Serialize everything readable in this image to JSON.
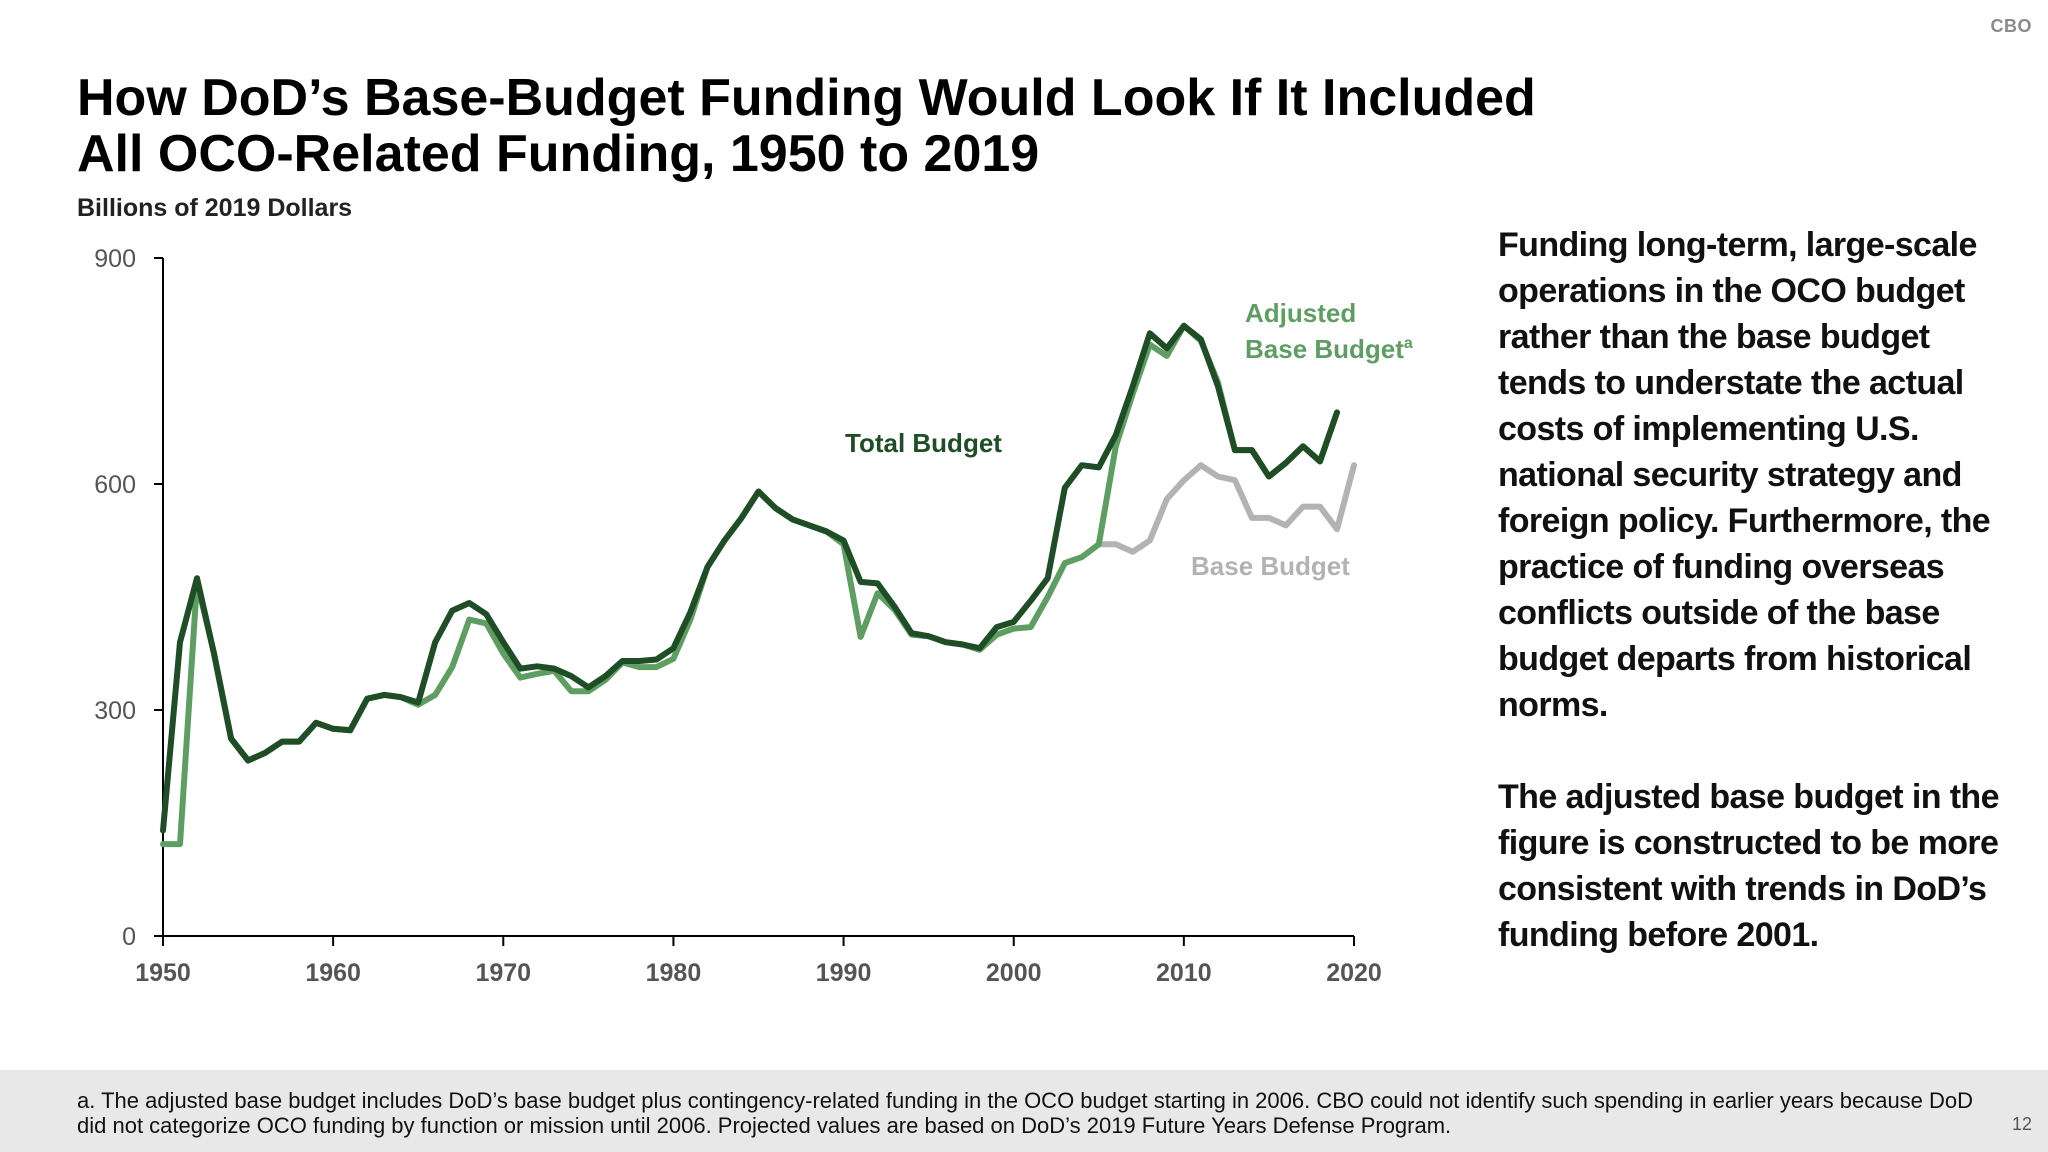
{
  "header": {
    "brand": "CBO"
  },
  "title_line1": "How DoD’s Base-Budget Funding Would Look If It Included",
  "title_line2": "All OCO-Related Funding, 1950 to 2019",
  "unit_label": "Billions of 2019 Dollars",
  "side_text": {
    "para1": "Funding long-term, large-scale operations in the OCO budget rather than the base budget tends to understate the actual costs of implementing U.S. national security strategy and foreign policy. Furthermore, the practice of funding overseas conflicts outside of the base budget departs from historical norms.",
    "para2_before": "The ",
    "para2_bold": "adjusted base budget",
    "para2_after": " in the figure is constructed to be more consistent with trends in DoD’s funding before 2001."
  },
  "footnote": "a. The adjusted base budget includes DoD’s base budget plus contingency-related funding in the OCO budget starting in 2006. CBO could not identify such spending in earlier years because DoD did not categorize OCO funding by function or mission until 2006. Projected values are based on DoD’s 2019 Future Years Defense Program.",
  "page_number": "12",
  "colors": {
    "total": "#1e4d26",
    "adjusted": "#5f9e62",
    "base": "#b3b3b3",
    "axis": "#000000",
    "tick_text": "#555555"
  },
  "chart_data": {
    "type": "line",
    "x_ticks": [
      1950,
      1960,
      1970,
      1980,
      1990,
      2000,
      2010,
      2020
    ],
    "y_ticks": [
      0,
      300,
      600,
      900
    ],
    "xlim": [
      1950,
      2020
    ],
    "ylim": [
      0,
      900
    ],
    "grid": false,
    "annotations": {
      "total": "Total Budget",
      "adjusted_line1": "Adjusted",
      "adjusted_line2": "Base Budget",
      "adjusted_sup": "a",
      "base": "Base Budget"
    },
    "series": [
      {
        "name": "Base Budget",
        "key": "base",
        "points": [
          [
            2005,
            520
          ],
          [
            2006,
            520
          ],
          [
            2007,
            510
          ],
          [
            2008,
            525
          ],
          [
            2009,
            580
          ],
          [
            2010,
            605
          ],
          [
            2011,
            625
          ],
          [
            2012,
            610
          ],
          [
            2013,
            605
          ],
          [
            2014,
            555
          ],
          [
            2015,
            555
          ],
          [
            2016,
            545
          ],
          [
            2017,
            570
          ],
          [
            2018,
            570
          ],
          [
            2019,
            540
          ],
          [
            2020,
            625
          ]
        ]
      },
      {
        "name": "Adjusted Base Budget",
        "key": "adjusted",
        "points": [
          [
            1950,
            122
          ],
          [
            1951,
            122
          ],
          [
            1952,
            470
          ],
          [
            1953,
            375
          ],
          [
            1954,
            262
          ],
          [
            1955,
            233
          ],
          [
            1956,
            243
          ],
          [
            1957,
            258
          ],
          [
            1958,
            258
          ],
          [
            1959,
            283
          ],
          [
            1960,
            275
          ],
          [
            1961,
            273
          ],
          [
            1962,
            315
          ],
          [
            1963,
            320
          ],
          [
            1964,
            317
          ],
          [
            1965,
            307
          ],
          [
            1966,
            320
          ],
          [
            1967,
            357
          ],
          [
            1968,
            420
          ],
          [
            1969,
            415
          ],
          [
            1970,
            375
          ],
          [
            1971,
            343
          ],
          [
            1972,
            348
          ],
          [
            1973,
            352
          ],
          [
            1974,
            325
          ],
          [
            1975,
            325
          ],
          [
            1976,
            340
          ],
          [
            1977,
            363
          ],
          [
            1978,
            357
          ],
          [
            1979,
            357
          ],
          [
            1980,
            368
          ],
          [
            1981,
            420
          ],
          [
            1982,
            490
          ],
          [
            1983,
            525
          ],
          [
            1984,
            555
          ],
          [
            1985,
            590
          ],
          [
            1986,
            568
          ],
          [
            1987,
            553
          ],
          [
            1988,
            545
          ],
          [
            1989,
            537
          ],
          [
            1990,
            520
          ],
          [
            1991,
            397
          ],
          [
            1992,
            455
          ],
          [
            1993,
            433
          ],
          [
            1994,
            400
          ],
          [
            1995,
            398
          ],
          [
            1996,
            390
          ],
          [
            1997,
            387
          ],
          [
            1998,
            380
          ],
          [
            1999,
            400
          ],
          [
            2000,
            408
          ],
          [
            2001,
            410
          ],
          [
            2002,
            450
          ],
          [
            2003,
            495
          ],
          [
            2004,
            503
          ],
          [
            2005,
            520
          ],
          [
            2006,
            650
          ],
          [
            2007,
            720
          ],
          [
            2008,
            785
          ],
          [
            2009,
            770
          ],
          [
            2010,
            810
          ],
          [
            2011,
            790
          ],
          [
            2012,
            735
          ],
          [
            2013,
            645
          ],
          [
            2014,
            645
          ],
          [
            2015,
            610
          ],
          [
            2016,
            628
          ],
          [
            2017,
            650
          ],
          [
            2018,
            630
          ],
          [
            2019,
            695
          ]
        ]
      },
      {
        "name": "Total Budget",
        "key": "total",
        "points": [
          [
            1950,
            140
          ],
          [
            1951,
            390
          ],
          [
            1952,
            475
          ],
          [
            1953,
            375
          ],
          [
            1954,
            262
          ],
          [
            1955,
            233
          ],
          [
            1956,
            243
          ],
          [
            1957,
            258
          ],
          [
            1958,
            258
          ],
          [
            1959,
            283
          ],
          [
            1960,
            275
          ],
          [
            1961,
            273
          ],
          [
            1962,
            315
          ],
          [
            1963,
            320
          ],
          [
            1964,
            317
          ],
          [
            1965,
            310
          ],
          [
            1966,
            390
          ],
          [
            1967,
            432
          ],
          [
            1968,
            442
          ],
          [
            1969,
            427
          ],
          [
            1970,
            390
          ],
          [
            1971,
            355
          ],
          [
            1972,
            358
          ],
          [
            1973,
            355
          ],
          [
            1974,
            345
          ],
          [
            1975,
            330
          ],
          [
            1976,
            345
          ],
          [
            1977,
            365
          ],
          [
            1978,
            365
          ],
          [
            1979,
            367
          ],
          [
            1980,
            382
          ],
          [
            1981,
            430
          ],
          [
            1982,
            490
          ],
          [
            1983,
            525
          ],
          [
            1984,
            555
          ],
          [
            1985,
            590
          ],
          [
            1986,
            568
          ],
          [
            1987,
            553
          ],
          [
            1988,
            545
          ],
          [
            1989,
            537
          ],
          [
            1990,
            525
          ],
          [
            1991,
            470
          ],
          [
            1992,
            468
          ],
          [
            1993,
            437
          ],
          [
            1994,
            402
          ],
          [
            1995,
            398
          ],
          [
            1996,
            390
          ],
          [
            1997,
            387
          ],
          [
            1998,
            382
          ],
          [
            1999,
            410
          ],
          [
            2000,
            417
          ],
          [
            2001,
            445
          ],
          [
            2002,
            475
          ],
          [
            2003,
            595
          ],
          [
            2004,
            625
          ],
          [
            2005,
            622
          ],
          [
            2006,
            665
          ],
          [
            2007,
            730
          ],
          [
            2008,
            800
          ],
          [
            2009,
            780
          ],
          [
            2010,
            810
          ],
          [
            2011,
            792
          ],
          [
            2012,
            730
          ],
          [
            2013,
            645
          ],
          [
            2014,
            645
          ],
          [
            2015,
            610
          ],
          [
            2016,
            628
          ],
          [
            2017,
            650
          ],
          [
            2018,
            630
          ],
          [
            2019,
            695
          ]
        ]
      }
    ]
  }
}
